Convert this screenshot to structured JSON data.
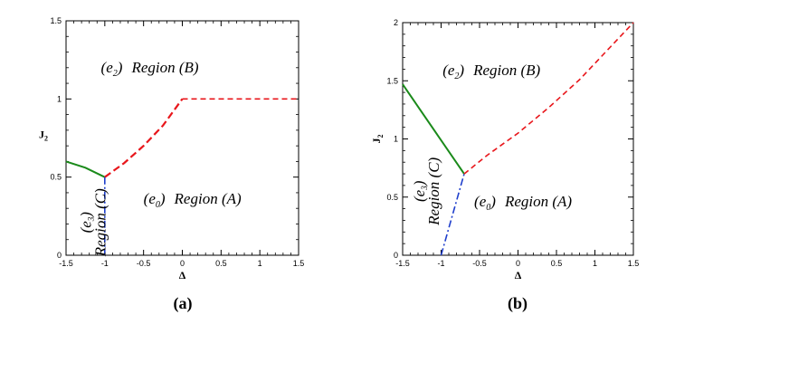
{
  "chart_data": [
    {
      "type": "line",
      "panel_label": "(a)",
      "xlabel": "Δ",
      "ylabel_main": "J",
      "ylabel_sub": "2",
      "xlim": [
        -1.5,
        1.5
      ],
      "ylim": [
        0,
        1.5
      ],
      "xticks": [
        -1.5,
        -1,
        -0.5,
        0,
        0.5,
        1,
        1.5
      ],
      "xtick_labels": [
        "-1.5",
        "-1",
        "-0.5",
        "0",
        "0.5",
        "1",
        "1.5"
      ],
      "yticks": [
        0,
        0.5,
        1,
        1.5
      ],
      "ytick_labels": [
        "0",
        "0.5",
        "1",
        "1.5"
      ],
      "series": [
        {
          "style": "solid",
          "color": "#1a8a1a",
          "x": [
            -1.5,
            -1.25,
            -1.0
          ],
          "y": [
            0.6,
            0.56,
            0.5
          ]
        },
        {
          "style": "dashed",
          "color": "#e8161b",
          "x": [
            -1.0,
            -0.75,
            -0.5,
            -0.25,
            0.0
          ],
          "y": [
            0.5,
            0.59,
            0.7,
            0.83,
            1.0
          ]
        },
        {
          "style": "dashed-fine",
          "color": "#e8161b",
          "x": [
            0.0,
            1.5
          ],
          "y": [
            1.0,
            1.0
          ]
        },
        {
          "style": "dashdot",
          "color": "#1f3fcc",
          "x": [
            -1.0,
            -1.0
          ],
          "y": [
            0.5,
            0.0
          ]
        }
      ],
      "annotations": [
        {
          "id": "region-b",
          "state_main": "e",
          "state_sub": "2",
          "text": "Region (B)",
          "x": -1.05,
          "y": 1.17
        },
        {
          "id": "region-a",
          "state_main": "e",
          "state_sub": "0",
          "text": "Region (A)",
          "x": -0.5,
          "y": 0.33
        },
        {
          "id": "region-c",
          "state_main": "e",
          "state_sub": "3",
          "text": "Region (C)",
          "x": -1.18,
          "y": 0.21,
          "rotated": true
        }
      ]
    },
    {
      "type": "line",
      "panel_label": "(b)",
      "xlabel": "Δ",
      "ylabel_main": "J",
      "ylabel_sub": "2",
      "xlim": [
        -1.5,
        1.5
      ],
      "ylim": [
        0,
        2
      ],
      "xticks": [
        -1.5,
        -1,
        -0.5,
        0,
        0.5,
        1,
        1.5
      ],
      "xtick_labels": [
        "-1.5",
        "-1",
        "-0.5",
        "0",
        "0.5",
        "1",
        "1.5"
      ],
      "yticks": [
        0,
        0.5,
        1,
        1.5,
        2
      ],
      "ytick_labels": [
        "0",
        "0.5",
        "1",
        "1.5",
        "2"
      ],
      "series": [
        {
          "style": "solid",
          "color": "#1a8a1a",
          "x": [
            -1.5,
            -0.7
          ],
          "y": [
            1.47,
            0.7
          ]
        },
        {
          "style": "dashed-fine",
          "color": "#e8161b",
          "x": [
            -0.7,
            -0.4,
            0.0,
            0.4,
            0.8,
            1.2,
            1.5
          ],
          "y": [
            0.7,
            0.86,
            1.05,
            1.27,
            1.51,
            1.79,
            2.0
          ]
        },
        {
          "style": "dashdot",
          "color": "#1f3fcc",
          "x": [
            -1.0,
            -0.7
          ],
          "y": [
            0.0,
            0.7
          ]
        }
      ],
      "annotations": [
        {
          "id": "region-b",
          "state_main": "e",
          "state_sub": "2",
          "text": "Region (B)",
          "x": -0.98,
          "y": 1.55
        },
        {
          "id": "region-a",
          "state_main": "e",
          "state_sub": "0",
          "text": "Region (A)",
          "x": -0.57,
          "y": 0.42
        },
        {
          "id": "region-c",
          "state_main": "e",
          "state_sub": "3",
          "text": "Region (C)",
          "x": -1.22,
          "y": 0.55,
          "rotated": true
        }
      ]
    }
  ]
}
